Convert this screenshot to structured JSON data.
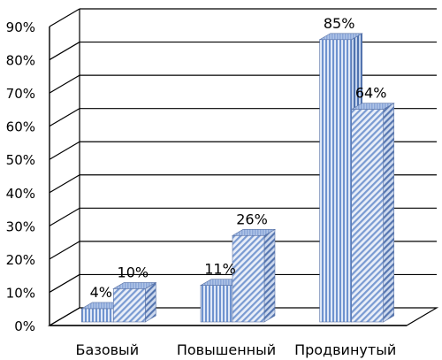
{
  "chart_data": {
    "type": "bar",
    "categories": [
      "Базовый",
      "Повышенный",
      "Продвинутый"
    ],
    "series": [
      {
        "values": [
          4,
          11,
          85
        ],
        "labels": [
          "4%",
          "11%",
          "85%"
        ],
        "color": "#8faadc",
        "pattern": "vertical-stripes"
      },
      {
        "values": [
          10,
          26,
          64
        ],
        "labels": [
          "10%",
          "26%",
          "64%"
        ],
        "color": "#8faadc",
        "pattern": "diagonal-stripes"
      }
    ],
    "ylim": [
      0,
      90
    ],
    "yticks": [
      0,
      10,
      20,
      30,
      40,
      50,
      60,
      70,
      80,
      90
    ],
    "ytick_labels": [
      "0%",
      "10%",
      "20%",
      "30%",
      "40%",
      "50%",
      "60%",
      "70%",
      "80%",
      "90%"
    ],
    "grid": true,
    "style": "3d-clustered-column",
    "title": "",
    "xlabel": "",
    "ylabel": ""
  }
}
